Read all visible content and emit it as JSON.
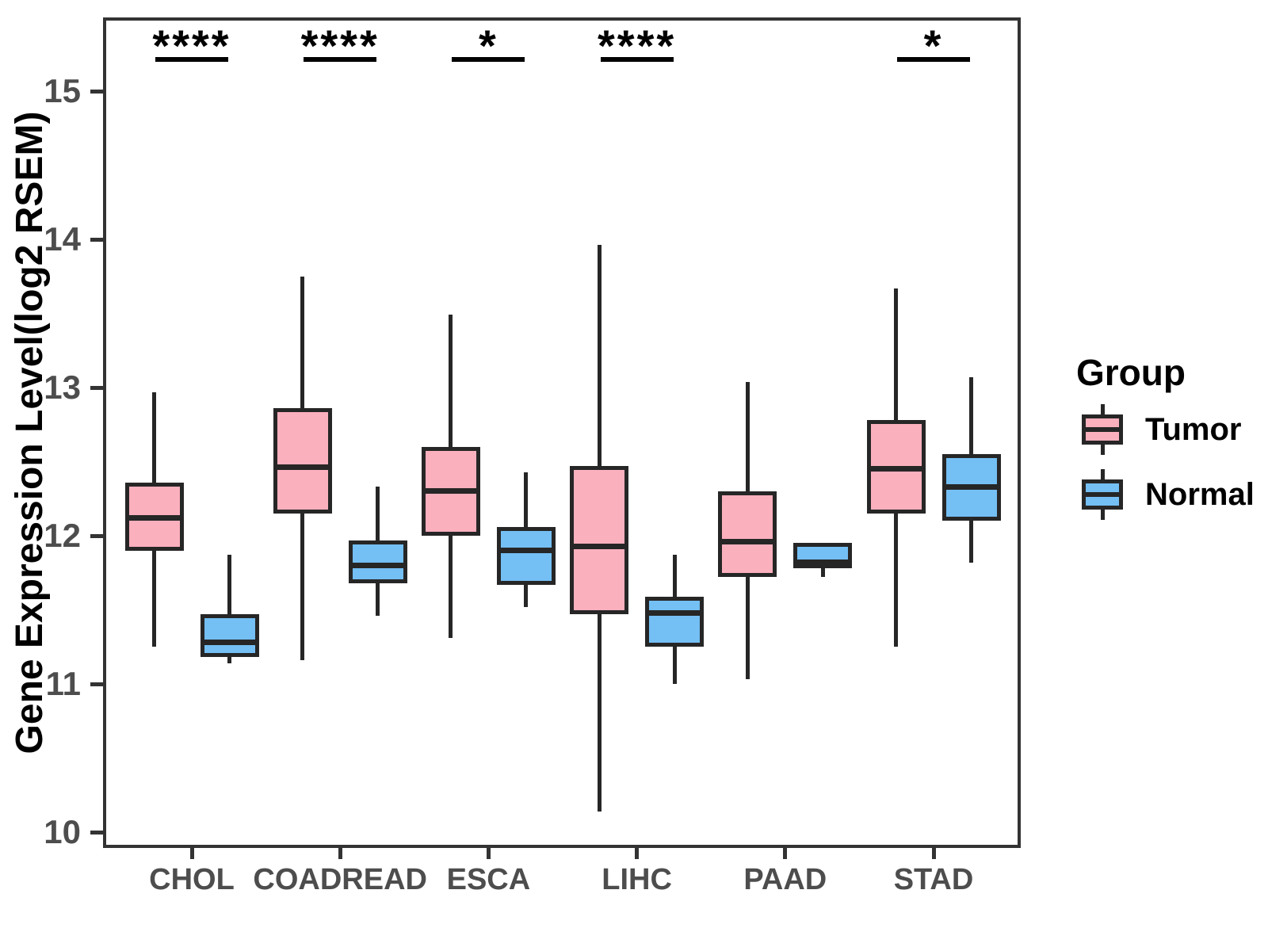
{
  "chart_data": {
    "type": "boxplot",
    "title": "",
    "xlabel": "",
    "ylabel": "Gene Expression Level(log2 RSEM)",
    "yticks": [
      10,
      11,
      12,
      13,
      14,
      15
    ],
    "ylim": [
      9.89,
      15.5
    ],
    "grid": false,
    "categories": [
      "CHOL",
      "COADREAD",
      "ESCA",
      "LIHC",
      "PAAD",
      "STAD"
    ],
    "significance": [
      "****",
      "****",
      "*",
      "****",
      "",
      "*"
    ],
    "box_stats_order": [
      "whisker_low",
      "q1",
      "median",
      "q3",
      "whisker_high"
    ],
    "series": [
      {
        "name": "Tumor",
        "color": "#FBB0BE",
        "boxes": [
          [
            11.25,
            11.9,
            12.12,
            12.36,
            12.97
          ],
          [
            11.16,
            12.15,
            12.46,
            12.86,
            13.75
          ],
          [
            11.31,
            12.0,
            12.3,
            12.6,
            13.49
          ],
          [
            10.14,
            11.47,
            11.93,
            12.47,
            13.96
          ],
          [
            11.03,
            11.72,
            11.96,
            12.3,
            13.04
          ],
          [
            11.25,
            12.15,
            12.45,
            12.78,
            13.67
          ]
        ]
      },
      {
        "name": "Normal",
        "color": "#74BFF4",
        "boxes": [
          [
            11.14,
            11.18,
            11.28,
            11.47,
            11.87
          ],
          [
            11.46,
            11.68,
            11.8,
            11.97,
            12.33
          ],
          [
            11.52,
            11.67,
            11.9,
            12.06,
            12.43
          ],
          [
            11.0,
            11.25,
            11.48,
            11.59,
            11.87
          ],
          [
            11.72,
            11.78,
            11.82,
            11.95,
            11.95
          ],
          [
            11.82,
            12.1,
            12.33,
            12.55,
            13.07
          ]
        ]
      }
    ],
    "legend": {
      "title": "Group",
      "position": "right"
    },
    "line_color": "#262626",
    "axis_color": "#333333",
    "tick_label_color": "#4d4d4d"
  }
}
